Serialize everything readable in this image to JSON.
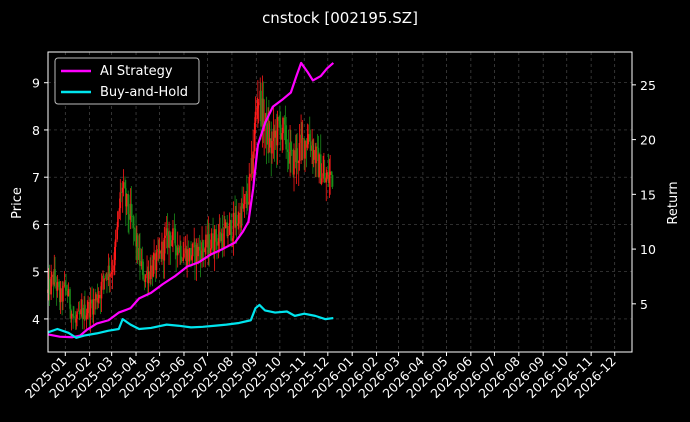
{
  "chart_data": {
    "type": "line",
    "title": "cnstock [002195.SZ]",
    "ylabel_left": "Price",
    "ylabel_right": "Return",
    "x_ticks": [
      "2025-01",
      "2025-02",
      "2025-03",
      "2025-04",
      "2025-05",
      "2025-06",
      "2025-07",
      "2025-08",
      "2025-09",
      "2025-10",
      "2025-11",
      "2025-12",
      "2026-01",
      "2026-02",
      "2026-03",
      "2026-04",
      "2026-05",
      "2026-06",
      "2026-07",
      "2026-08",
      "2026-09",
      "2026-10",
      "2026-11",
      "2026-12"
    ],
    "xlim": [
      "2024-12-10",
      "2026-12-23"
    ],
    "y_left_ticks": [
      4,
      5,
      6,
      7,
      8,
      9
    ],
    "y_left_lim": [
      3.3,
      9.65
    ],
    "y_right_ticks": [
      5,
      10,
      15,
      20,
      25
    ],
    "y_right_lim": [
      0.6,
      28.0
    ],
    "grid": true,
    "legend_position": "top-left",
    "colors": {
      "ai": "#ff00ff",
      "bh": "#00e5ee",
      "up": "#ff1a1a",
      "down": "#1a8c1a",
      "grid": "#4a4a4a"
    },
    "price_path": [
      [
        "2024-12-10",
        4.55
      ],
      [
        "2024-12-18",
        4.9
      ],
      [
        "2024-12-26",
        4.4
      ],
      [
        "2025-01-02",
        4.7
      ],
      [
        "2025-01-08",
        4.25
      ],
      [
        "2025-01-14",
        3.9
      ],
      [
        "2025-01-22",
        4.1
      ],
      [
        "2025-02-05",
        4.3
      ],
      [
        "2025-02-15",
        4.6
      ],
      [
        "2025-02-22",
        5.0
      ],
      [
        "2025-03-01",
        5.05
      ],
      [
        "2025-03-06",
        5.4
      ],
      [
        "2025-03-10",
        6.2
      ],
      [
        "2025-03-14",
        6.8
      ],
      [
        "2025-03-20",
        6.4
      ],
      [
        "2025-03-28",
        6.0
      ],
      [
        "2025-04-05",
        5.3
      ],
      [
        "2025-04-12",
        4.9
      ],
      [
        "2025-04-20",
        5.05
      ],
      [
        "2025-04-28",
        5.2
      ],
      [
        "2025-05-06",
        5.5
      ],
      [
        "2025-05-14",
        5.8
      ],
      [
        "2025-05-22",
        5.6
      ],
      [
        "2025-06-01",
        5.4
      ],
      [
        "2025-06-10",
        5.35
      ],
      [
        "2025-06-20",
        5.45
      ],
      [
        "2025-07-01",
        5.55
      ],
      [
        "2025-07-12",
        5.7
      ],
      [
        "2025-07-25",
        5.8
      ],
      [
        "2025-08-05",
        6.0
      ],
      [
        "2025-08-15",
        6.3
      ],
      [
        "2025-08-22",
        6.6
      ],
      [
        "2025-08-27",
        7.2
      ],
      [
        "2025-08-31",
        8.2
      ],
      [
        "2025-09-04",
        8.8
      ],
      [
        "2025-09-09",
        8.3
      ],
      [
        "2025-09-14",
        8.0
      ],
      [
        "2025-09-20",
        7.6
      ],
      [
        "2025-09-26",
        7.9
      ],
      [
        "2025-10-03",
        8.1
      ],
      [
        "2025-10-10",
        7.7
      ],
      [
        "2025-10-17",
        7.3
      ],
      [
        "2025-10-24",
        7.5
      ],
      [
        "2025-10-31",
        7.7
      ],
      [
        "2025-11-07",
        7.9
      ],
      [
        "2025-11-14",
        7.5
      ],
      [
        "2025-11-21",
        7.2
      ],
      [
        "2025-11-28",
        6.9
      ],
      [
        "2025-12-03",
        7.0
      ],
      [
        "2025-12-08",
        7.05
      ]
    ],
    "series": [
      {
        "name": "AI Strategy",
        "color": "#ff00ff",
        "points": [
          [
            "2024-12-10",
            2.2
          ],
          [
            "2024-12-25",
            2.0
          ],
          [
            "2025-01-10",
            1.95
          ],
          [
            "2025-01-20",
            2.1
          ],
          [
            "2025-01-28",
            2.6
          ],
          [
            "2025-02-10",
            3.2
          ],
          [
            "2025-02-25",
            3.5
          ],
          [
            "2025-03-10",
            4.2
          ],
          [
            "2025-03-25",
            4.6
          ],
          [
            "2025-04-05",
            5.5
          ],
          [
            "2025-04-20",
            6.0
          ],
          [
            "2025-05-05",
            6.8
          ],
          [
            "2025-05-20",
            7.5
          ],
          [
            "2025-06-05",
            8.4
          ],
          [
            "2025-06-20",
            8.8
          ],
          [
            "2025-07-05",
            9.5
          ],
          [
            "2025-07-20",
            10.0
          ],
          [
            "2025-08-05",
            10.6
          ],
          [
            "2025-08-15",
            11.6
          ],
          [
            "2025-08-22",
            12.5
          ],
          [
            "2025-08-28",
            15.5
          ],
          [
            "2025-09-03",
            19.5
          ],
          [
            "2025-09-12",
            21.5
          ],
          [
            "2025-09-22",
            23.0
          ],
          [
            "2025-10-05",
            23.7
          ],
          [
            "2025-10-15",
            24.3
          ],
          [
            "2025-10-22",
            25.8
          ],
          [
            "2025-10-28",
            27.0
          ],
          [
            "2025-11-05",
            26.2
          ],
          [
            "2025-11-12",
            25.4
          ],
          [
            "2025-11-22",
            25.8
          ],
          [
            "2025-11-30",
            26.5
          ],
          [
            "2025-12-08",
            27.0
          ]
        ]
      },
      {
        "name": "Buy-and-Hold",
        "color": "#00e5ee",
        "points": [
          [
            "2024-12-10",
            2.4
          ],
          [
            "2024-12-22",
            2.7
          ],
          [
            "2025-01-05",
            2.35
          ],
          [
            "2025-01-15",
            1.9
          ],
          [
            "2025-01-25",
            2.1
          ],
          [
            "2025-02-10",
            2.3
          ],
          [
            "2025-02-25",
            2.55
          ],
          [
            "2025-03-10",
            2.7
          ],
          [
            "2025-03-15",
            3.6
          ],
          [
            "2025-03-25",
            3.1
          ],
          [
            "2025-04-05",
            2.7
          ],
          [
            "2025-04-20",
            2.8
          ],
          [
            "2025-05-10",
            3.1
          ],
          [
            "2025-05-25",
            3.0
          ],
          [
            "2025-06-10",
            2.85
          ],
          [
            "2025-06-25",
            2.9
          ],
          [
            "2025-07-10",
            3.0
          ],
          [
            "2025-07-25",
            3.1
          ],
          [
            "2025-08-10",
            3.25
          ],
          [
            "2025-08-25",
            3.5
          ],
          [
            "2025-08-31",
            4.6
          ],
          [
            "2025-09-05",
            4.9
          ],
          [
            "2025-09-12",
            4.4
          ],
          [
            "2025-09-25",
            4.2
          ],
          [
            "2025-10-10",
            4.3
          ],
          [
            "2025-10-20",
            3.9
          ],
          [
            "2025-11-01",
            4.1
          ],
          [
            "2025-11-15",
            3.9
          ],
          [
            "2025-11-28",
            3.6
          ],
          [
            "2025-12-08",
            3.7
          ]
        ]
      }
    ]
  }
}
